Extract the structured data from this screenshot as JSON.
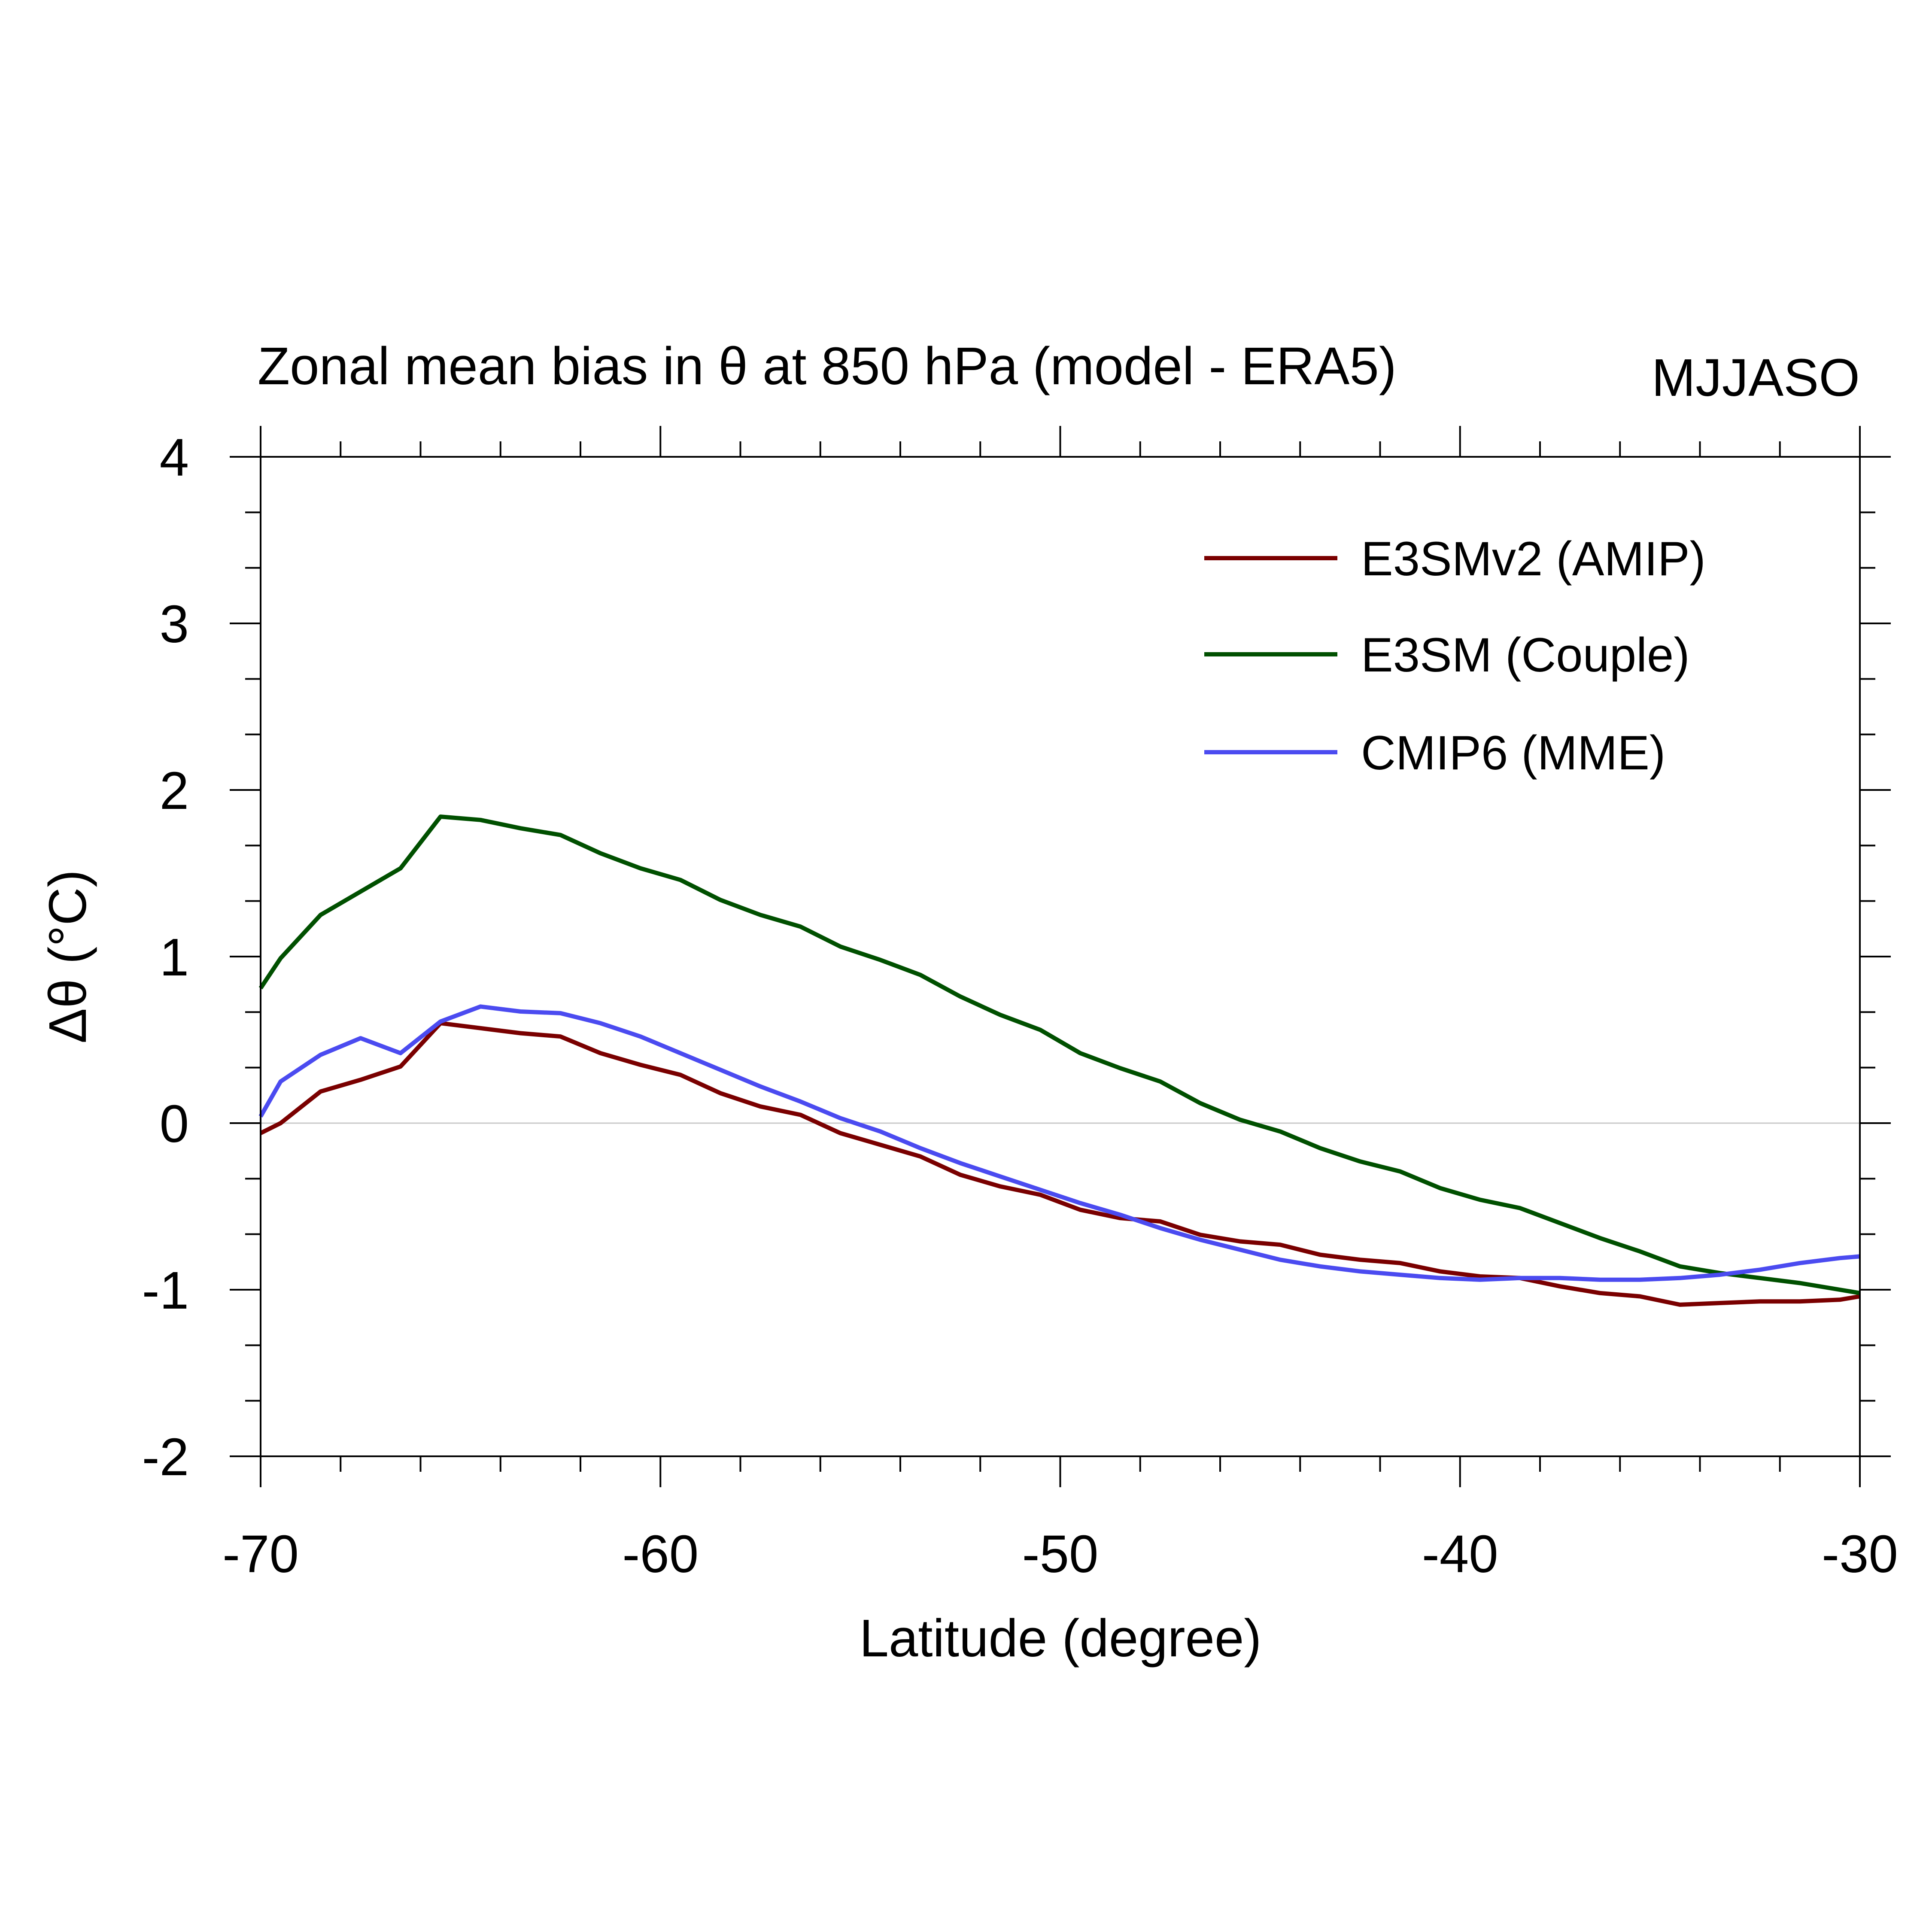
{
  "chart_data": {
    "type": "line",
    "title": "Zonal mean bias in θ at 850 hPa (model - ERA5)",
    "subtitle": "MJJASO",
    "xlabel": "Latitude (degree)",
    "ylabel": "Δθ (°C)",
    "xlim": [
      -70,
      -30
    ],
    "ylim": [
      -2,
      4
    ],
    "xticks": [
      -70,
      -60,
      -50,
      -40,
      -30
    ],
    "xtick_labels": [
      "-70",
      "-60",
      "-50",
      "-40",
      "-30"
    ],
    "yticks": [
      -2,
      -1,
      0,
      1,
      2,
      3,
      4
    ],
    "ytick_labels": [
      "-2",
      "-1",
      "0",
      "1",
      "2",
      "3",
      "4"
    ],
    "zero_line": true,
    "legend_position": "top-right",
    "x": [
      -70,
      -69.5,
      -68.5,
      -67.5,
      -66.5,
      -65.5,
      -64.5,
      -63.5,
      -62.5,
      -61.5,
      -60.5,
      -59.5,
      -58.5,
      -57.5,
      -56.5,
      -55.5,
      -54.5,
      -53.5,
      -52.5,
      -51.5,
      -50.5,
      -49.5,
      -48.5,
      -47.5,
      -46.5,
      -45.5,
      -44.5,
      -43.5,
      -42.5,
      -41.5,
      -40.5,
      -39.5,
      -38.5,
      -37.5,
      -36.5,
      -35.5,
      -34.5,
      -33.5,
      -32.5,
      -31.5,
      -30.5,
      -30
    ],
    "series": [
      {
        "name": "E3SMv2 (AMIP)",
        "color": "#7a0000",
        "values": [
          -0.06,
          0.0,
          0.19,
          0.26,
          0.34,
          0.6,
          0.57,
          0.54,
          0.52,
          0.42,
          0.35,
          0.29,
          0.18,
          0.1,
          0.05,
          -0.06,
          -0.13,
          -0.2,
          -0.31,
          -0.38,
          -0.43,
          -0.52,
          -0.57,
          -0.59,
          -0.67,
          -0.71,
          -0.73,
          -0.79,
          -0.82,
          -0.84,
          -0.89,
          -0.92,
          -0.93,
          -0.98,
          -1.02,
          -1.04,
          -1.09,
          -1.08,
          -1.07,
          -1.07,
          -1.06,
          -1.04
        ]
      },
      {
        "name": "E3SM (Couple)",
        "color": "#005000",
        "values": [
          0.81,
          0.99,
          1.25,
          1.39,
          1.53,
          1.84,
          1.82,
          1.77,
          1.73,
          1.62,
          1.53,
          1.46,
          1.34,
          1.25,
          1.18,
          1.06,
          0.98,
          0.89,
          0.76,
          0.65,
          0.56,
          0.42,
          0.33,
          0.25,
          0.12,
          0.02,
          -0.05,
          -0.15,
          -0.23,
          -0.29,
          -0.39,
          -0.46,
          -0.51,
          -0.6,
          -0.69,
          -0.77,
          -0.86,
          -0.9,
          -0.93,
          -0.96,
          -1.0,
          -1.02
        ]
      },
      {
        "name": "CMIP6 (MME)",
        "color": "#4b4bf0",
        "values": [
          0.04,
          0.25,
          0.41,
          0.51,
          0.42,
          0.61,
          0.7,
          0.67,
          0.66,
          0.6,
          0.52,
          0.42,
          0.32,
          0.22,
          0.13,
          0.03,
          -0.05,
          -0.15,
          -0.24,
          -0.32,
          -0.4,
          -0.48,
          -0.55,
          -0.63,
          -0.7,
          -0.76,
          -0.82,
          -0.86,
          -0.89,
          -0.91,
          -0.93,
          -0.94,
          -0.93,
          -0.93,
          -0.94,
          -0.94,
          -0.93,
          -0.91,
          -0.88,
          -0.84,
          -0.81,
          -0.8
        ]
      }
    ]
  }
}
